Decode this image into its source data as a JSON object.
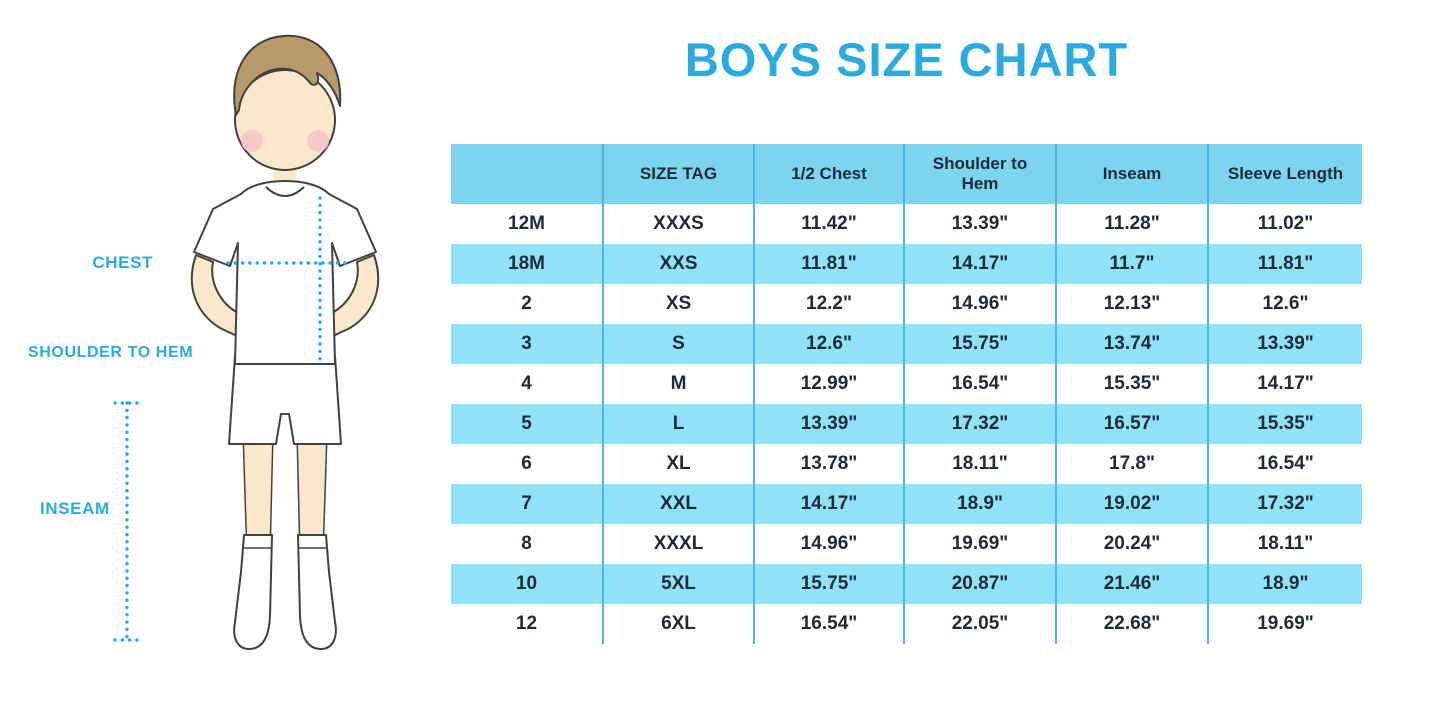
{
  "title": "BOYS SIZE CHART",
  "figure_labels": {
    "chest": "CHEST",
    "shoulder_to_hem": "SHOULDER TO HEM",
    "inseam": "INSEAM"
  },
  "colors": {
    "accent": "#29ABE2",
    "header_row": "#7CD4EF",
    "stripe_row": "#8FE2F8",
    "divider": "#49B6E3",
    "text_dark": "#1D2B38"
  },
  "chart_data": {
    "type": "table",
    "title": "BOYS SIZE CHART",
    "columns": [
      "",
      "SIZE TAG",
      "1/2 Chest",
      "Shoulder to Hem",
      "Inseam",
      "Sleeve Length"
    ],
    "rows": [
      [
        "12M",
        "XXXS",
        "11.42\"",
        "13.39\"",
        "11.28\"",
        "11.02\""
      ],
      [
        "18M",
        "XXS",
        "11.81\"",
        "14.17\"",
        "11.7\"",
        "11.81\""
      ],
      [
        "2",
        "XS",
        "12.2\"",
        "14.96\"",
        "12.13\"",
        "12.6\""
      ],
      [
        "3",
        "S",
        "12.6\"",
        "15.75\"",
        "13.74\"",
        "13.39\""
      ],
      [
        "4",
        "M",
        "12.99\"",
        "16.54\"",
        "15.35\"",
        "14.17\""
      ],
      [
        "5",
        "L",
        "13.39\"",
        "17.32\"",
        "16.57\"",
        "15.35\""
      ],
      [
        "6",
        "XL",
        "13.78\"",
        "18.11\"",
        "17.8\"",
        "16.54\""
      ],
      [
        "7",
        "XXL",
        "14.17\"",
        "18.9\"",
        "19.02\"",
        "17.32\""
      ],
      [
        "8",
        "XXXL",
        "14.96\"",
        "19.69\"",
        "20.24\"",
        "18.11\""
      ],
      [
        "10",
        "5XL",
        "15.75\"",
        "20.87\"",
        "21.46\"",
        "18.9\""
      ],
      [
        "12",
        "6XL",
        "16.54\"",
        "22.05\"",
        "22.68\"",
        "19.69\""
      ]
    ]
  }
}
